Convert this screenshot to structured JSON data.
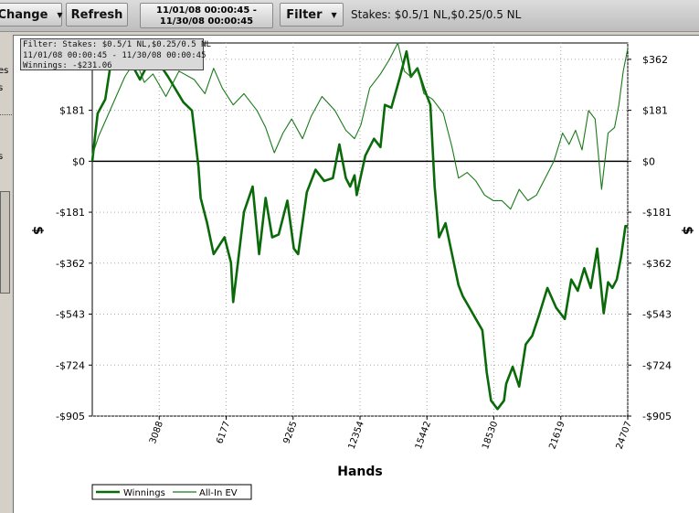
{
  "toolbar": {
    "change_label": "Change",
    "refresh_label": "Refresh",
    "date_line1": "11/01/08 00:00:45 -",
    "date_line2": "11/30/08 00:00:45",
    "filter_label": "Filter",
    "stakes_text": "Stakes: $0.5/1 NL,$0.25/0.5 NL"
  },
  "sidebar": {
    "item1": "es",
    "item2": "s",
    "item3": "s"
  },
  "filter_box": {
    "line1": "Filter: Stakes: $0.5/1 NL,$0.25/0.5 NL",
    "line2": "11/01/08 00:00:45 - 11/30/08 00:00:45",
    "line3": "Winnings: -$231.06"
  },
  "colors": {
    "winnings": "#0a6a0a",
    "allin_ev": "#1a7a1a",
    "zero_line": "#000000"
  },
  "chart_data": {
    "type": "line",
    "xlabel": "Hands",
    "ylabel": "$",
    "xlim": [
      0,
      24707
    ],
    "ylim": [
      -905,
      420
    ],
    "x_ticks": [
      3088,
      6177,
      9265,
      12354,
      15442,
      18530,
      21619,
      24707
    ],
    "y_ticks": [
      362,
      181,
      0,
      -181,
      -362,
      -543,
      -724,
      -905
    ],
    "x_tick_labels": [
      "3088",
      "6177",
      "9265",
      "12354",
      "15442",
      "18530",
      "21619",
      "24707"
    ],
    "y_tick_labels": [
      "$362",
      "$181",
      "$0",
      "-$181",
      "-$362",
      "-$543",
      "-$724",
      "-$905"
    ],
    "legend": [
      "Winnings",
      "All-In EV"
    ],
    "legend_position": "bottom-left",
    "grid": true,
    "series": [
      {
        "name": "Winnings",
        "x": [
          0,
          250,
          600,
          1000,
          1500,
          2200,
          2800,
          3500,
          4200,
          4600,
          4900,
          5000,
          5300,
          5600,
          6100,
          6400,
          6500,
          7000,
          7400,
          7700,
          8000,
          8300,
          8600,
          9000,
          9300,
          9500,
          9900,
          10300,
          10700,
          11100,
          11400,
          11700,
          11900,
          12100,
          12200,
          12600,
          13000,
          13300,
          13500,
          13800,
          14200,
          14500,
          14700,
          15000,
          15300,
          15600,
          15800,
          16000,
          16300,
          16600,
          16900,
          17100,
          17400,
          17700,
          18000,
          18200,
          18400,
          18700,
          19000,
          19100,
          19400,
          19700,
          20000,
          20300,
          20600,
          21000,
          21400,
          21800,
          22100,
          22400,
          22700,
          23000,
          23300,
          23600,
          23800,
          24000,
          24200,
          24400,
          24600,
          24707
        ],
        "y": [
          0,
          170,
          220,
          420,
          390,
          290,
          380,
          300,
          210,
          180,
          -20,
          -130,
          -220,
          -330,
          -270,
          -360,
          -500,
          -180,
          -90,
          -330,
          -130,
          -270,
          -260,
          -140,
          -310,
          -330,
          -110,
          -30,
          -70,
          -60,
          60,
          -60,
          -90,
          -50,
          -120,
          20,
          80,
          50,
          200,
          190,
          300,
          390,
          300,
          330,
          260,
          200,
          -90,
          -270,
          -220,
          -330,
          -440,
          -480,
          -520,
          -560,
          -600,
          -750,
          -850,
          -880,
          -850,
          -790,
          -730,
          -800,
          -650,
          -620,
          -550,
          -450,
          -520,
          -560,
          -420,
          -460,
          -380,
          -450,
          -310,
          -540,
          -430,
          -450,
          -420,
          -340,
          -230,
          -231
        ]
      },
      {
        "name": "All-In EV",
        "x": [
          0,
          300,
          700,
          1100,
          1500,
          2000,
          2400,
          2800,
          3400,
          4000,
          4700,
          5200,
          5600,
          6000,
          6500,
          7000,
          7600,
          8000,
          8400,
          8800,
          9200,
          9700,
          10100,
          10600,
          11200,
          11700,
          12100,
          12400,
          12800,
          13300,
          13700,
          14100,
          14400,
          14700,
          15000,
          15300,
          15700,
          16200,
          16600,
          16900,
          17300,
          17700,
          18100,
          18500,
          18900,
          19300,
          19700,
          20100,
          20500,
          20900,
          21300,
          21700,
          22000,
          22300,
          22600,
          22900,
          23200,
          23500,
          23800,
          24100,
          24300,
          24500,
          24707
        ],
        "y": [
          20,
          90,
          160,
          230,
          300,
          360,
          280,
          310,
          230,
          320,
          290,
          240,
          330,
          260,
          200,
          240,
          180,
          120,
          30,
          100,
          150,
          80,
          160,
          230,
          180,
          110,
          80,
          130,
          260,
          310,
          360,
          420,
          320,
          300,
          330,
          240,
          220,
          170,
          50,
          -60,
          -40,
          -70,
          -120,
          -140,
          -140,
          -170,
          -100,
          -140,
          -120,
          -60,
          0,
          100,
          60,
          110,
          40,
          180,
          150,
          -100,
          100,
          120,
          200,
          320,
          400
        ]
      }
    ]
  }
}
